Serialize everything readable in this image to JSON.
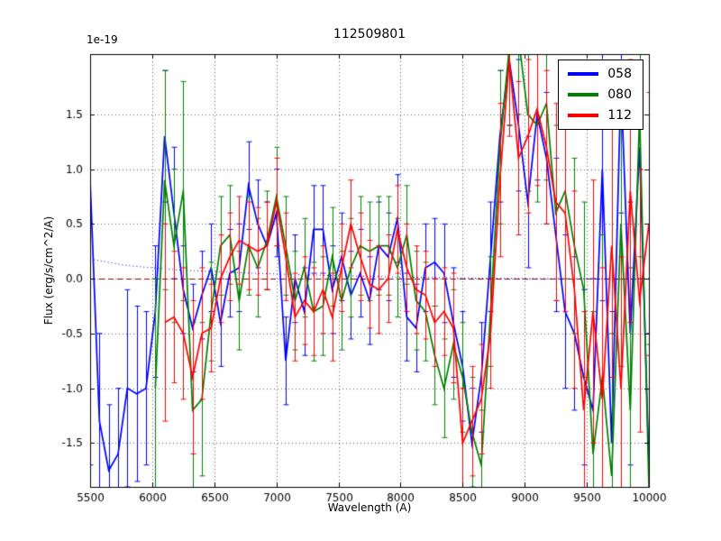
{
  "chart_data": {
    "type": "line",
    "title": "112509801",
    "offset_text": "1e-19",
    "xlabel": "Wavelength (A)",
    "ylabel": "Flux (erg/s/cm^2/A)",
    "xlim": [
      5500,
      10000
    ],
    "ylim": [
      -1.9,
      2.05
    ],
    "grid": "dotted",
    "xticks": [
      5500,
      6000,
      6500,
      7000,
      7500,
      8000,
      8500,
      9000,
      9500,
      10000
    ],
    "xtick_labels": [
      "5500",
      "6000",
      "6500",
      "7000",
      "7500",
      "8000",
      "8500",
      "9000",
      "9500",
      "10000"
    ],
    "yticks": [
      -1.5,
      -1.0,
      -0.5,
      0.0,
      0.5,
      1.0,
      1.5
    ],
    "ytick_labels": [
      "-1.5",
      "-1.0",
      "-0.5",
      "0.0",
      "0.5",
      "1.0",
      "1.5"
    ],
    "x": [
      5500,
      5575,
      5650,
      5725,
      5800,
      5875,
      5950,
      6025,
      6100,
      6175,
      6250,
      6325,
      6400,
      6475,
      6550,
      6625,
      6700,
      6775,
      6850,
      6925,
      7000,
      7075,
      7150,
      7225,
      7300,
      7375,
      7450,
      7525,
      7600,
      7675,
      7750,
      7825,
      7900,
      7975,
      8050,
      8125,
      8200,
      8275,
      8350,
      8425,
      8500,
      8575,
      8650,
      8725,
      8800,
      8875,
      8950,
      9025,
      9100,
      9175,
      9250,
      9325,
      9400,
      9475,
      9550,
      9625,
      9700,
      9775,
      9850,
      9925,
      10000
    ],
    "series": [
      {
        "name": "058",
        "color": "#0000ff",
        "values": [
          0.9,
          -1.3,
          -1.75,
          -1.6,
          -1.0,
          -1.05,
          -1.0,
          -0.3,
          1.3,
          0.6,
          -0.1,
          -0.45,
          -0.15,
          0.1,
          -0.4,
          0.05,
          0.1,
          0.85,
          0.5,
          0.3,
          0.6,
          -0.75,
          0.0,
          -0.3,
          0.45,
          0.45,
          -0.1,
          0.2,
          -0.15,
          0.05,
          -0.2,
          0.3,
          0.2,
          0.55,
          -0.35,
          -0.45,
          0.1,
          0.15,
          0.05,
          -0.4,
          -0.8,
          -1.5,
          -0.9,
          0.2,
          1.3,
          2.0,
          1.4,
          0.7,
          1.5,
          1.1,
          0.4,
          -0.3,
          -0.5,
          -0.9,
          -1.2,
          1.0,
          -1.5,
          1.8,
          -0.5,
          1.2,
          -1.7
        ],
        "yerr": [
          2.6,
          0.8,
          0.6,
          0.6,
          0.9,
          0.8,
          0.7,
          0.6,
          0.6,
          0.6,
          0.4,
          0.4,
          0.4,
          0.4,
          0.4,
          0.4,
          0.4,
          0.4,
          0.4,
          0.4,
          0.4,
          0.4,
          0.4,
          0.4,
          0.4,
          0.4,
          0.4,
          0.4,
          0.4,
          0.4,
          0.4,
          0.4,
          0.4,
          0.4,
          0.4,
          0.4,
          0.4,
          0.4,
          0.45,
          0.5,
          0.5,
          0.5,
          0.5,
          0.5,
          0.6,
          0.6,
          0.6,
          0.6,
          0.6,
          0.6,
          0.7,
          0.7,
          0.7,
          0.8,
          1.2,
          1.2,
          1.2,
          1.2,
          1.2,
          1.2,
          1.2
        ]
      },
      {
        "name": "080",
        "color": "#008000",
        "values": [
          null,
          null,
          null,
          null,
          null,
          null,
          null,
          -1.0,
          0.9,
          0.3,
          0.8,
          -1.2,
          -1.1,
          -0.3,
          0.3,
          0.4,
          -0.2,
          0.3,
          0.1,
          0.35,
          0.75,
          0.3,
          -0.2,
          0.1,
          -0.3,
          -0.25,
          0.2,
          -0.2,
          0.1,
          0.3,
          0.25,
          0.3,
          0.3,
          0.1,
          0.4,
          -0.2,
          -0.3,
          -0.7,
          -1.0,
          -0.6,
          -0.9,
          -1.4,
          -1.7,
          -0.3,
          1.2,
          2.1,
          2.2,
          1.5,
          1.4,
          1.6,
          0.6,
          0.8,
          0.3,
          -0.1,
          -1.6,
          -0.9,
          -1.8,
          0.5,
          -1.2,
          1.5,
          -1.9
        ],
        "yerr": [
          null,
          null,
          null,
          null,
          null,
          null,
          null,
          1.0,
          1.0,
          0.7,
          1.0,
          0.8,
          0.7,
          0.45,
          0.45,
          0.45,
          0.45,
          0.45,
          0.45,
          0.45,
          0.45,
          0.45,
          0.45,
          0.45,
          0.45,
          0.45,
          0.45,
          0.45,
          0.45,
          0.45,
          0.45,
          0.45,
          0.45,
          0.45,
          0.45,
          0.45,
          0.45,
          0.45,
          0.45,
          0.5,
          0.5,
          0.5,
          0.5,
          0.5,
          0.7,
          0.7,
          0.7,
          0.7,
          0.7,
          0.7,
          0.8,
          0.8,
          0.8,
          0.8,
          1.3,
          1.3,
          1.3,
          1.3,
          1.3,
          1.3,
          1.3
        ]
      },
      {
        "name": "112",
        "color": "#ff0000",
        "values": [
          null,
          null,
          null,
          null,
          null,
          null,
          null,
          null,
          -0.4,
          -0.35,
          -0.5,
          -0.9,
          -0.5,
          -0.45,
          0.0,
          0.2,
          0.35,
          0.3,
          0.25,
          0.3,
          0.7,
          0.2,
          -0.35,
          -0.2,
          -0.3,
          -0.1,
          -0.35,
          0.1,
          0.5,
          0.2,
          -0.05,
          -0.1,
          0.0,
          0.45,
          0.1,
          -0.1,
          -0.15,
          -0.4,
          -0.3,
          -0.45,
          -1.5,
          -1.3,
          -1.1,
          -0.5,
          0.9,
          2.0,
          1.1,
          1.3,
          1.55,
          1.2,
          0.7,
          0.6,
          -0.1,
          -1.2,
          -0.3,
          -1.1,
          0.3,
          -1.0,
          0.8,
          -0.2,
          0.5
        ],
        "yerr": [
          null,
          null,
          null,
          null,
          null,
          null,
          null,
          null,
          0.9,
          0.6,
          0.6,
          0.7,
          0.6,
          0.4,
          0.4,
          0.4,
          0.4,
          0.4,
          0.4,
          0.4,
          0.4,
          0.4,
          0.4,
          0.4,
          0.4,
          0.4,
          0.4,
          0.4,
          0.4,
          0.4,
          0.4,
          0.4,
          0.4,
          0.4,
          0.4,
          0.4,
          0.4,
          0.4,
          0.4,
          0.5,
          0.5,
          0.5,
          0.5,
          0.5,
          0.7,
          0.7,
          0.7,
          0.7,
          0.7,
          0.7,
          0.9,
          0.9,
          0.9,
          0.9,
          1.2,
          1.2,
          1.2,
          1.2,
          1.2,
          1.2,
          1.2
        ]
      }
    ],
    "reference_lines": [
      {
        "type": "hline",
        "y": 0.0,
        "color": "#8b0000",
        "style": "dashed"
      },
      {
        "type": "curve",
        "color": "#0000ff",
        "style": "dotted",
        "points": [
          [
            5500,
            0.18
          ],
          [
            5800,
            0.12
          ],
          [
            6200,
            0.08
          ],
          [
            6800,
            0.05
          ],
          [
            7400,
            0.03
          ],
          [
            8000,
            0.015
          ],
          [
            8600,
            0.005
          ],
          [
            9200,
            0.0
          ],
          [
            10000,
            0.0
          ]
        ]
      }
    ],
    "legend": {
      "position": "upper right",
      "entries": [
        {
          "label": "058",
          "color": "#0000ff"
        },
        {
          "label": "080",
          "color": "#008000"
        },
        {
          "label": "112",
          "color": "#ff0000"
        }
      ]
    },
    "colors": {
      "axis": "#000000",
      "grid": "#666666",
      "background": "#ffffff"
    }
  }
}
